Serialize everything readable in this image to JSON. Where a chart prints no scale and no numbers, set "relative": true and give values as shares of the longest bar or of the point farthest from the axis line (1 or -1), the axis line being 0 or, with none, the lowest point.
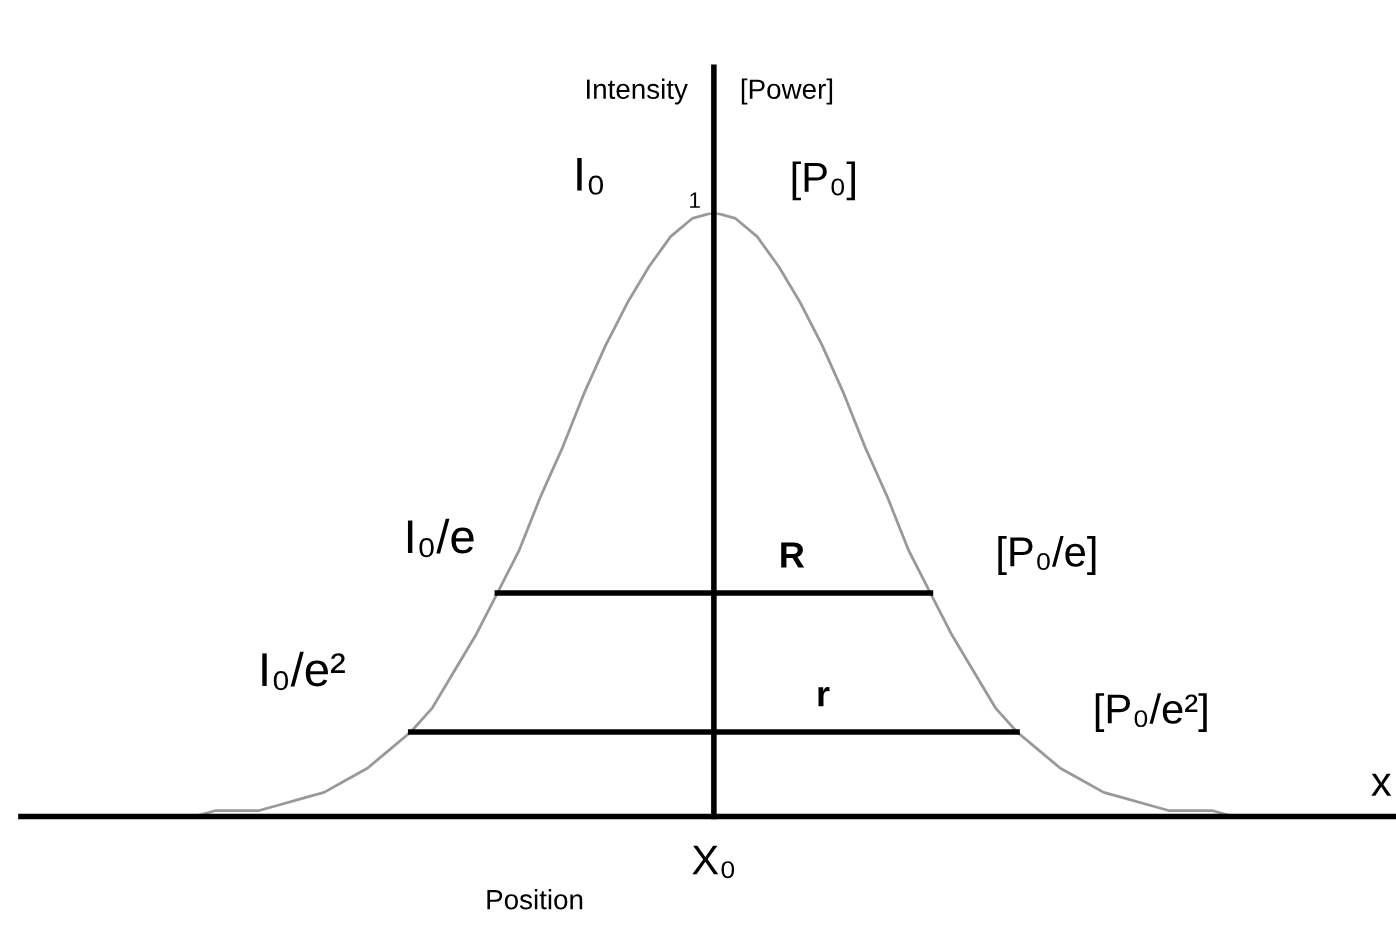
{
  "chart_data": {
    "type": "line",
    "relative": true,
    "xlabel": "Position",
    "ylabel": "Intensity",
    "y2label": "[Power]",
    "categories": [
      null,
      null,
      null,
      null,
      null,
      null,
      null,
      null,
      null,
      null,
      null,
      null,
      null,
      null,
      null,
      null,
      null,
      null,
      null,
      null,
      null,
      null,
      null,
      null,
      null,
      null,
      null,
      null,
      null,
      null,
      null,
      null,
      null,
      null,
      null,
      null,
      null,
      null,
      null,
      null,
      null,
      null,
      null,
      null,
      null,
      null,
      null,
      null,
      null,
      null,
      null,
      null,
      null,
      null,
      null,
      null,
      null,
      null,
      null,
      null,
      null
    ],
    "series": [
      {
        "color": "#999999",
        "values": [
          0,
          0,
          0,
          0,
          0,
          0,
          0,
          0.01,
          0.01,
          0.01,
          0.02,
          0.03,
          0.04,
          0.06,
          0.08,
          0.11,
          0.14,
          0.18,
          0.24,
          0.3,
          0.37,
          0.44,
          0.53,
          0.61,
          0.7,
          0.78,
          0.85,
          0.91,
          0.96,
          0.99,
          1,
          0.99,
          0.96,
          0.91,
          0.85,
          0.78,
          0.7,
          0.61,
          0.53,
          0.44,
          0.37,
          0.3,
          0.24,
          0.18,
          0.14,
          0.11,
          0.08,
          0.06,
          0.04,
          0.03,
          0.02,
          0.01,
          0.01,
          0.01,
          0,
          0,
          0,
          0,
          0,
          0,
          0
        ]
      },
      {
        "name": "R",
        "color": "#000000",
        "values": [
          null,
          null,
          null,
          null,
          null,
          null,
          null,
          null,
          null,
          null,
          null,
          null,
          null,
          null,
          null,
          null,
          null,
          null,
          null,
          null,
          0.37,
          0.37,
          0.37,
          0.37,
          0.37,
          0.37,
          0.37,
          0.37,
          0.37,
          0.37,
          0.37,
          0.37,
          0.37,
          0.37,
          0.37,
          0.37,
          0.37,
          0.37,
          0.37,
          0.37,
          0.37,
          null,
          null,
          null,
          null,
          null,
          null,
          null,
          null,
          null,
          null,
          null,
          null,
          null,
          null,
          null,
          null,
          null,
          null,
          null,
          null
        ]
      },
      {
        "name": "r",
        "color": "#000000",
        "values": [
          null,
          null,
          null,
          null,
          null,
          null,
          null,
          null,
          null,
          null,
          null,
          null,
          null,
          null,
          null,
          null,
          0.14,
          0.14,
          0.14,
          0.14,
          0.14,
          0.14,
          0.14,
          0.14,
          0.14,
          0.14,
          0.14,
          0.14,
          0.14,
          0.14,
          0.14,
          0.14,
          0.14,
          0.14,
          0.14,
          0.14,
          0.14,
          0.14,
          0.14,
          0.14,
          0.14,
          0.14,
          0.14,
          0.14,
          0.14,
          null,
          null,
          null,
          null,
          null,
          null,
          null,
          null,
          null,
          null,
          null,
          null,
          null,
          null,
          null,
          null
        ]
      }
    ],
    "annotations": [
      "I₀",
      "[P₀]",
      "I₀/e",
      "[P₀/e]",
      "I₀/e²",
      "[P₀/e²]",
      "1",
      "x",
      "X₀"
    ],
    "legend": false,
    "grid": false,
    "marker": "none",
    "line_style": "solid"
  }
}
